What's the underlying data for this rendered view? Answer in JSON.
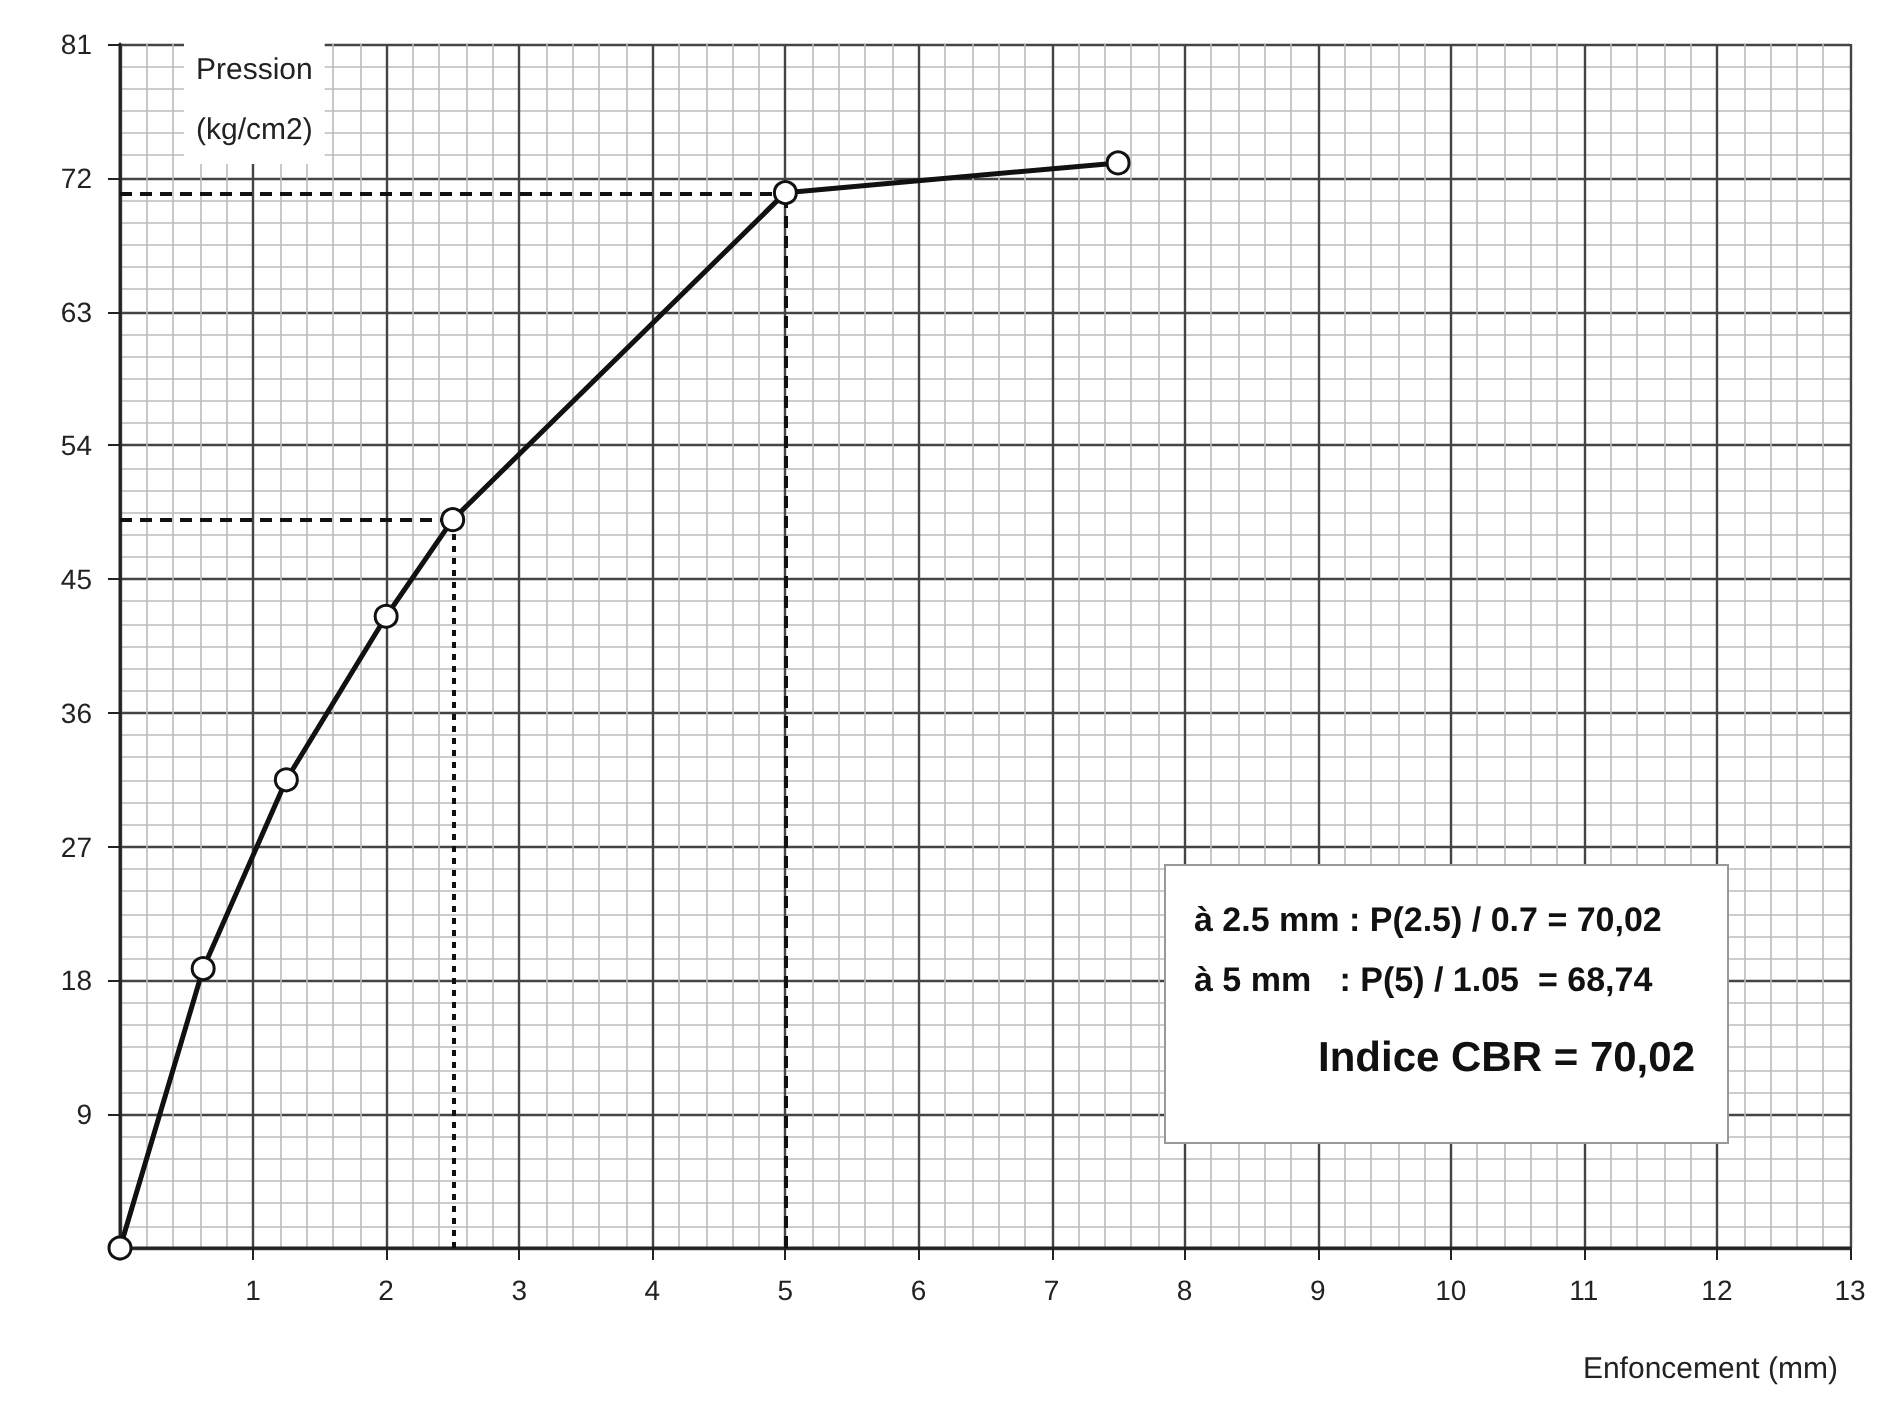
{
  "chart_data": {
    "type": "line",
    "xlabel": "Enfoncement (mm)",
    "ylabel": "Pression\n(kg/cm2)",
    "x": [
      0,
      0.625,
      1.25,
      2,
      2.5,
      5,
      7.5
    ],
    "series": [
      {
        "color": "#111111",
        "values": [
          0,
          18.8,
          31.5,
          42.5,
          49,
          71,
          73
        ]
      }
    ],
    "xlim": [
      0,
      13
    ],
    "xticks": [
      {
        "value": 0,
        "label": null
      },
      1,
      2,
      3,
      4,
      5,
      6,
      7,
      8,
      9,
      10,
      11,
      12,
      13
    ],
    "ylim": [
      0,
      81
    ],
    "yticks": [
      {
        "value": 0,
        "label": null
      },
      9,
      18,
      27,
      36,
      45,
      54,
      63,
      72,
      81
    ],
    "grid": true,
    "marker": "circle",
    "line_style": "solid",
    "ref_lines": [
      {
        "axis": "x",
        "value": 2.5,
        "line_style": "dotted"
      },
      {
        "axis": "x",
        "value": 5,
        "line_style": "dashed"
      },
      {
        "axis": "y",
        "value": 49,
        "line_style": "dashed"
      },
      {
        "axis": "y",
        "value": 71,
        "line_style": "dashed"
      }
    ],
    "annotations": [
      "à 2.5 mm : P(2.5) / 0.7 = 70,02",
      "à 5 mm   : P(5) / 1.05  = 68,74",
      "Indice CBR = 70,02"
    ]
  }
}
